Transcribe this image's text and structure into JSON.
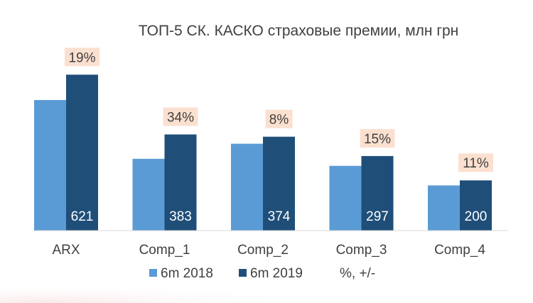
{
  "chart_data": {
    "type": "bar",
    "title": "ТОП-5 СК. КАСКО страховые премии, млн грн",
    "categories": [
      "ARX",
      "Comp_1",
      "Comp_2",
      "Comp_3",
      "Comp_4"
    ],
    "series": [
      {
        "name": "6m 2018",
        "color": "#5B9BD5",
        "values": [
          520,
          286,
          346,
          258,
          180
        ]
      },
      {
        "name": "6m 2019",
        "color": "#1F4E79",
        "values": [
          621,
          383,
          374,
          297,
          200
        ]
      }
    ],
    "growth": {
      "name": "%, +/-",
      "color": "#FBE0D0",
      "labels": [
        "19%",
        "34%",
        "8%",
        "15%",
        "11%"
      ]
    },
    "value_labels": [
      "621",
      "383",
      "374",
      "297",
      "200"
    ],
    "ylim": [
      0,
      650
    ],
    "grid": false,
    "legend_position": "bottom"
  }
}
